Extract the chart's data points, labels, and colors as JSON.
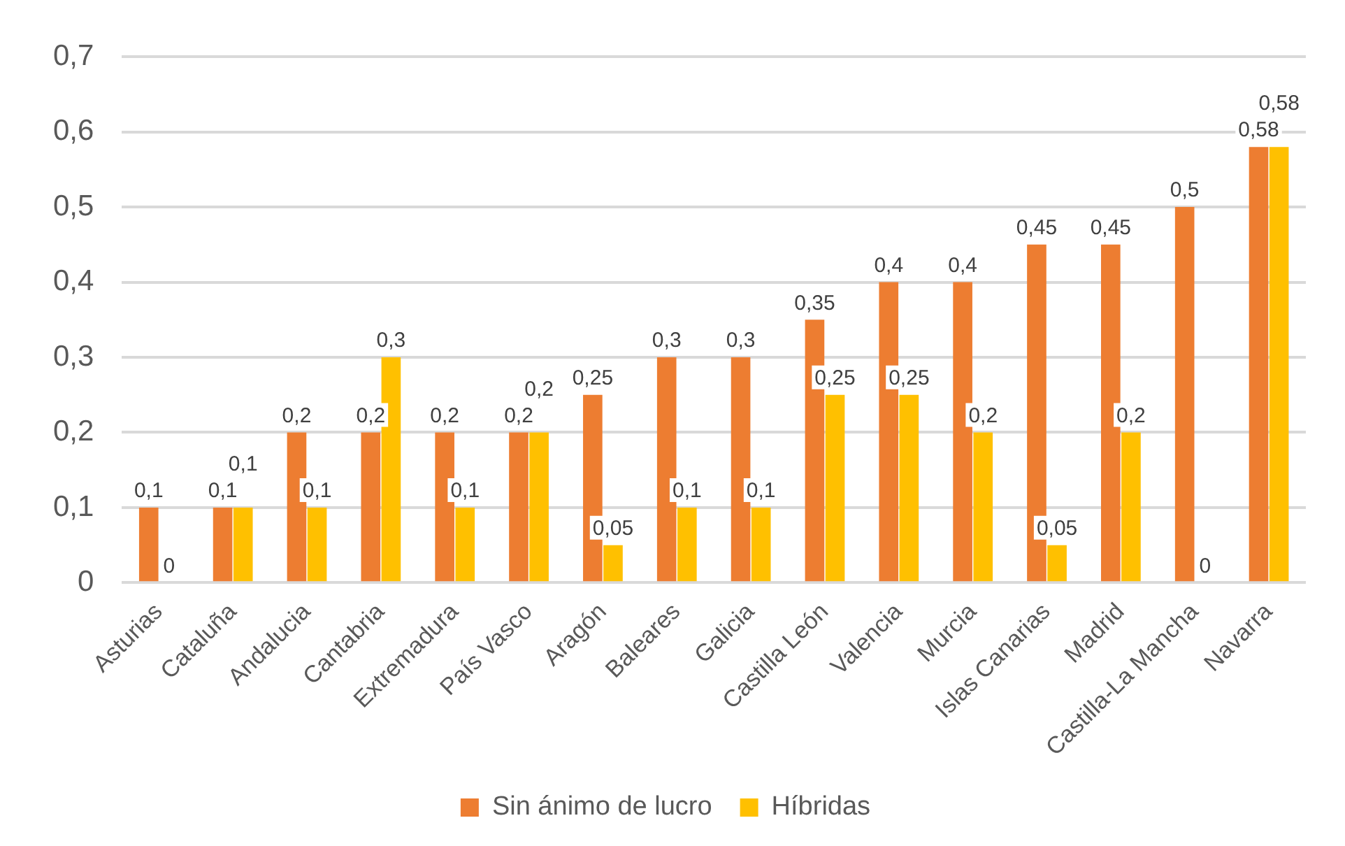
{
  "chart_data": {
    "type": "bar",
    "categories": [
      "Asturias",
      "Cataluña",
      "Andalucia",
      "Cantabria",
      "Extremadura",
      "País Vasco",
      "Aragón",
      "Baleares",
      "Galicia",
      "Castilla León",
      "Valencia",
      "Murcia",
      "Islas Canarias",
      "Madrid",
      "Castilla-La Mancha",
      "Navarra"
    ],
    "series": [
      {
        "name": "Sin ánimo de lucro",
        "color": "#ed7d31",
        "values": [
          0.1,
          0.1,
          0.2,
          0.2,
          0.2,
          0.2,
          0.25,
          0.3,
          0.3,
          0.35,
          0.4,
          0.4,
          0.45,
          0.45,
          0.5,
          0.58
        ],
        "value_labels": [
          "0,1",
          "0,1",
          "0,2",
          "0,2",
          "0,2",
          "0,2",
          "0,25",
          "0,3",
          "0,3",
          "0,35",
          "0,4",
          "0,4",
          "0,45",
          "0,45",
          "0,5",
          "0,58"
        ]
      },
      {
        "name": "Híbridas",
        "color": "#ffc000",
        "values": [
          0,
          0.1,
          0.1,
          0.3,
          0.1,
          0.2,
          0.05,
          0.1,
          0.1,
          0.25,
          0.25,
          0.2,
          0.05,
          0.2,
          0,
          0.58
        ],
        "value_labels": [
          "0",
          "0,1",
          "0,1",
          "0,3",
          "0,1",
          "0,2",
          "0,05",
          "0,1",
          "0,1",
          "0,25",
          "0,25",
          "0,2",
          "0,05",
          "0,2",
          "0",
          "0,58"
        ]
      }
    ],
    "ylim": [
      0,
      0.7
    ],
    "yticks": [
      0,
      {
        "value": 0.1,
        "label": "0,1"
      },
      {
        "value": 0.2,
        "label": "0,2"
      },
      {
        "value": 0.3,
        "label": "0,3"
      },
      {
        "value": 0.4,
        "label": "0,4"
      },
      {
        "value": 0.5,
        "label": "0,5"
      },
      {
        "value": 0.6,
        "label": "0,6"
      },
      {
        "value": 0.7,
        "label": "0,7"
      }
    ],
    "grid": "y",
    "legend": "bottom"
  }
}
